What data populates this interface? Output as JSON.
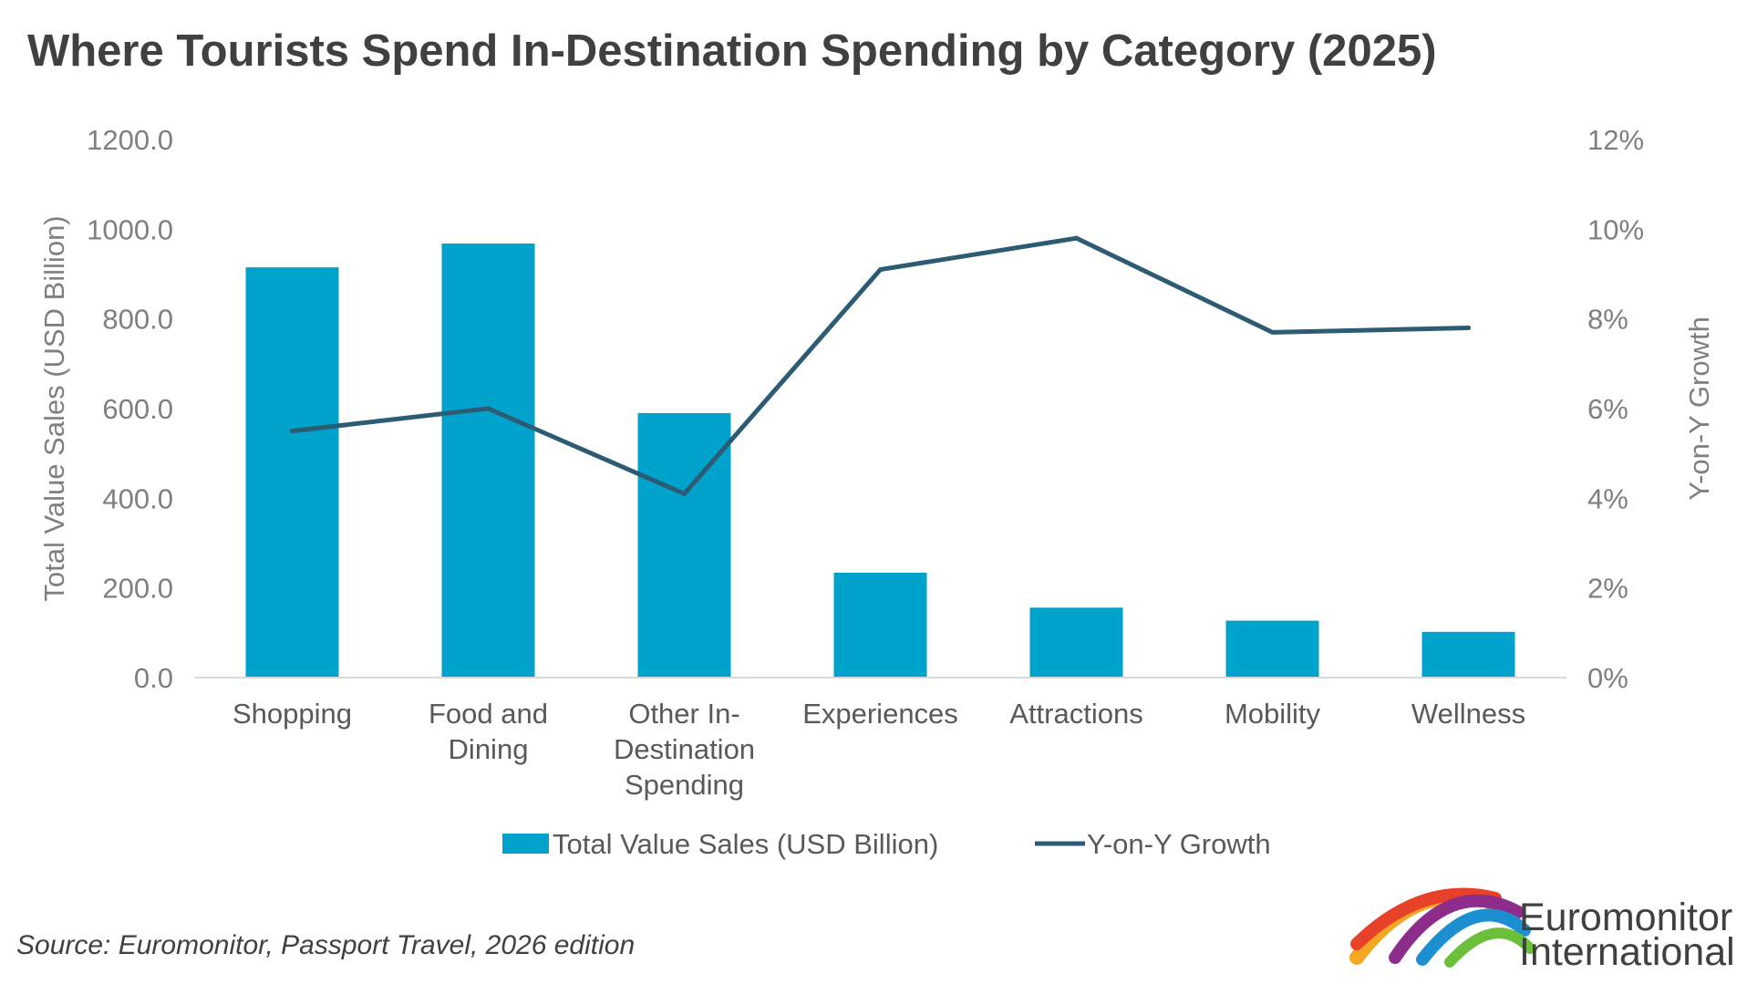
{
  "chart_data": {
    "type": "bar",
    "title": "Where Tourists Spend In-Destination Spending by Category (2025)",
    "categories": [
      "Shopping",
      "Food and Dining",
      "Other In-Destination Spending",
      "Experiences",
      "Attractions",
      "Mobility",
      "Wellness"
    ],
    "category_lines": [
      [
        "Shopping"
      ],
      [
        "Food and",
        "Dining"
      ],
      [
        "Other In-",
        "Destination",
        "Spending"
      ],
      [
        "Experiences"
      ],
      [
        "Attractions"
      ],
      [
        "Mobility"
      ],
      [
        "Wellness"
      ]
    ],
    "series": [
      {
        "name": "Total Value Sales (USD Billion)",
        "type": "bar",
        "axis": "left",
        "color": "#00a3cc",
        "values": [
          915,
          968,
          590,
          234,
          156,
          127,
          102
        ]
      },
      {
        "name": "Y-on-Y Growth",
        "type": "line",
        "axis": "right",
        "color": "#2e5b74",
        "values": [
          5.5,
          6.0,
          4.1,
          9.1,
          9.8,
          7.7,
          7.8
        ]
      }
    ],
    "y_left": {
      "label": "Total Value Sales (USD Billion)",
      "min": 0,
      "max": 1200,
      "ticks": [
        "0.0",
        "200.0",
        "400.0",
        "600.0",
        "800.0",
        "1000.0",
        "1200.0"
      ]
    },
    "y_right": {
      "label": "Y-on-Y Growth",
      "min": 0,
      "max": 12,
      "ticks": [
        "0%",
        "2%",
        "4%",
        "6%",
        "8%",
        "10%",
        "12%"
      ]
    },
    "legend_position": "bottom",
    "grid": false
  },
  "footer": {
    "source": "Source: Euromonitor, Passport Travel, 2026 edition",
    "brand_line1": "Euromonitor",
    "brand_line2": "International"
  }
}
